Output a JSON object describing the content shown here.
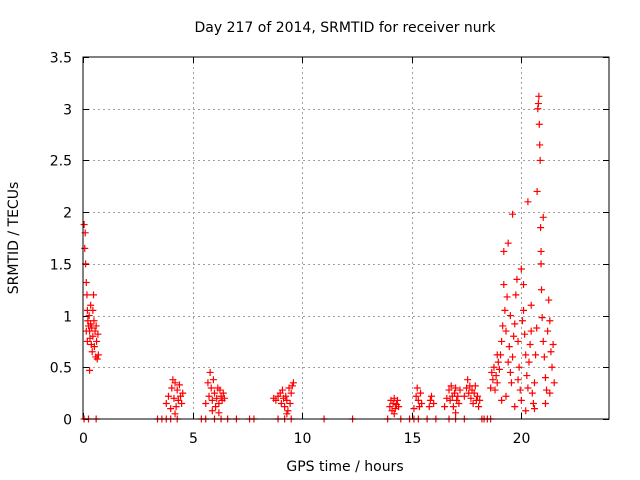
{
  "chart_data": {
    "type": "scatter",
    "title": "Day 217 of 2014, SRMTID for receiver nurk",
    "xlabel": "GPS time / hours",
    "ylabel": "SRMTID / TECUs",
    "xlim": [
      0,
      24
    ],
    "ylim": [
      0,
      3.5
    ],
    "xticks": [
      0,
      5,
      10,
      15,
      20
    ],
    "xtick_labels": [
      "0",
      "5",
      "10",
      "15",
      "20"
    ],
    "yticks": [
      0,
      0.5,
      1,
      1.5,
      2,
      2.5,
      3,
      3.5
    ],
    "ytick_labels": [
      "0",
      "0.5",
      "1",
      "1.5",
      "2",
      "2.5",
      "3",
      "3.5"
    ],
    "grid": true,
    "marker": "+",
    "series": [
      {
        "name": "SRMTID",
        "color": "#ff0000",
        "points": [
          [
            0.05,
            1.88
          ],
          [
            0.08,
            1.65
          ],
          [
            0.1,
            1.8
          ],
          [
            0.12,
            1.5
          ],
          [
            0.15,
            1.32
          ],
          [
            0.18,
            1.2
          ],
          [
            0.2,
            1.05
          ],
          [
            0.22,
            0.95
          ],
          [
            0.25,
            0.9
          ],
          [
            0.28,
            1.0
          ],
          [
            0.3,
            0.85
          ],
          [
            0.32,
            0.78
          ],
          [
            0.35,
            0.92
          ],
          [
            0.38,
            0.72
          ],
          [
            0.4,
            0.88
          ],
          [
            0.42,
            0.65
          ],
          [
            0.45,
            0.8
          ],
          [
            0.48,
            1.2
          ],
          [
            0.5,
            0.95
          ],
          [
            0.52,
            0.7
          ],
          [
            0.55,
            0.85
          ],
          [
            0.58,
            0.6
          ],
          [
            0.6,
            0.9
          ],
          [
            0.62,
            0.75
          ],
          [
            0.65,
            0.58
          ],
          [
            0.68,
            0.82
          ],
          [
            0.7,
            0.62
          ],
          [
            0.3,
            0.47
          ],
          [
            0.2,
            0.75
          ],
          [
            0.35,
            1.1
          ],
          [
            0.45,
            1.05
          ],
          [
            0.15,
            0.85
          ],
          [
            0.05,
            0.0
          ],
          [
            0.25,
            0.0
          ],
          [
            0.6,
            0.0
          ],
          [
            3.4,
            0.0
          ],
          [
            3.6,
            0.0
          ],
          [
            3.8,
            0.0
          ],
          [
            3.8,
            0.15
          ],
          [
            3.9,
            0.22
          ],
          [
            4.0,
            0.1
          ],
          [
            4.05,
            0.3
          ],
          [
            4.1,
            0.38
          ],
          [
            4.15,
            0.2
          ],
          [
            4.2,
            0.35
          ],
          [
            4.25,
            0.12
          ],
          [
            4.3,
            0.28
          ],
          [
            4.35,
            0.18
          ],
          [
            4.4,
            0.33
          ],
          [
            4.45,
            0.22
          ],
          [
            4.5,
            0.15
          ],
          [
            4.55,
            0.25
          ],
          [
            4.2,
            0.05
          ],
          [
            4.0,
            0.0
          ],
          [
            4.3,
            0.0
          ],
          [
            5.4,
            0.0
          ],
          [
            5.6,
            0.0
          ],
          [
            5.6,
            0.15
          ],
          [
            5.7,
            0.35
          ],
          [
            5.75,
            0.22
          ],
          [
            5.8,
            0.45
          ],
          [
            5.85,
            0.3
          ],
          [
            5.9,
            0.18
          ],
          [
            5.95,
            0.38
          ],
          [
            6.0,
            0.25
          ],
          [
            6.05,
            0.12
          ],
          [
            6.1,
            0.2
          ],
          [
            6.15,
            0.3
          ],
          [
            6.2,
            0.15
          ],
          [
            6.25,
            0.28
          ],
          [
            6.3,
            0.22
          ],
          [
            6.35,
            0.18
          ],
          [
            6.4,
            0.25
          ],
          [
            6.45,
            0.2
          ],
          [
            5.9,
            0.08
          ],
          [
            6.2,
            0.06
          ],
          [
            6.0,
            0.0
          ],
          [
            6.3,
            0.0
          ],
          [
            6.6,
            0.0
          ],
          [
            7.0,
            0.0
          ],
          [
            7.6,
            0.0
          ],
          [
            7.8,
            0.0
          ],
          [
            8.7,
            0.2
          ],
          [
            8.8,
            0.18
          ],
          [
            8.9,
            0.22
          ],
          [
            9.0,
            0.25
          ],
          [
            9.05,
            0.15
          ],
          [
            9.1,
            0.28
          ],
          [
            9.15,
            0.2
          ],
          [
            9.2,
            0.12
          ],
          [
            9.25,
            0.22
          ],
          [
            9.3,
            0.18
          ],
          [
            9.35,
            0.08
          ],
          [
            9.4,
            0.3
          ],
          [
            9.45,
            0.15
          ],
          [
            9.5,
            0.25
          ],
          [
            9.55,
            0.32
          ],
          [
            9.6,
            0.35
          ],
          [
            9.3,
            0.05
          ],
          [
            8.9,
            0.0
          ],
          [
            9.2,
            0.0
          ],
          [
            9.5,
            0.0
          ],
          [
            11.0,
            0.0
          ],
          [
            12.3,
            0.0
          ],
          [
            13.9,
            0.0
          ],
          [
            14.0,
            0.12
          ],
          [
            14.05,
            0.18
          ],
          [
            14.1,
            0.08
          ],
          [
            14.15,
            0.15
          ],
          [
            14.2,
            0.2
          ],
          [
            14.25,
            0.1
          ],
          [
            14.3,
            0.14
          ],
          [
            14.35,
            0.18
          ],
          [
            14.4,
            0.12
          ],
          [
            14.2,
            0.05
          ],
          [
            14.5,
            0.0
          ],
          [
            14.9,
            0.0
          ],
          [
            15.1,
            0.0
          ],
          [
            15.3,
            0.0
          ],
          [
            15.1,
            0.1
          ],
          [
            15.2,
            0.22
          ],
          [
            15.25,
            0.3
          ],
          [
            15.3,
            0.18
          ],
          [
            15.35,
            0.12
          ],
          [
            15.4,
            0.25
          ],
          [
            15.45,
            0.15
          ],
          [
            15.7,
            0.0
          ],
          [
            15.8,
            0.12
          ],
          [
            15.85,
            0.18
          ],
          [
            15.9,
            0.22
          ],
          [
            16.0,
            0.15
          ],
          [
            16.1,
            0.0
          ],
          [
            16.5,
            0.12
          ],
          [
            16.6,
            0.2
          ],
          [
            16.7,
            0.28
          ],
          [
            16.75,
            0.18
          ],
          [
            16.8,
            0.32
          ],
          [
            16.85,
            0.22
          ],
          [
            16.9,
            0.12
          ],
          [
            16.95,
            0.25
          ],
          [
            17.0,
            0.3
          ],
          [
            17.05,
            0.18
          ],
          [
            17.1,
            0.22
          ],
          [
            17.15,
            0.15
          ],
          [
            17.2,
            0.28
          ],
          [
            17.0,
            0.06
          ],
          [
            16.7,
            0.0
          ],
          [
            17.0,
            0.0
          ],
          [
            17.4,
            0.0
          ],
          [
            17.4,
            0.22
          ],
          [
            17.5,
            0.3
          ],
          [
            17.55,
            0.38
          ],
          [
            17.6,
            0.25
          ],
          [
            17.65,
            0.32
          ],
          [
            17.7,
            0.2
          ],
          [
            17.75,
            0.28
          ],
          [
            17.8,
            0.15
          ],
          [
            17.85,
            0.25
          ],
          [
            17.9,
            0.32
          ],
          [
            17.95,
            0.18
          ],
          [
            18.0,
            0.22
          ],
          [
            18.05,
            0.12
          ],
          [
            18.1,
            0.18
          ],
          [
            18.2,
            0.0
          ],
          [
            18.3,
            0.0
          ],
          [
            18.45,
            0.0
          ],
          [
            18.6,
            0.0
          ],
          [
            18.6,
            0.3
          ],
          [
            18.65,
            0.45
          ],
          [
            18.7,
            0.38
          ],
          [
            18.75,
            0.5
          ],
          [
            18.8,
            0.28
          ],
          [
            18.85,
            0.42
          ],
          [
            18.9,
            0.35
          ],
          [
            18.95,
            0.55
          ],
          [
            19.0,
            0.48
          ],
          [
            19.05,
            0.62
          ],
          [
            19.1,
            0.75
          ],
          [
            19.15,
            0.9
          ],
          [
            19.2,
            1.3
          ],
          [
            19.25,
            1.05
          ],
          [
            19.3,
            0.85
          ],
          [
            19.35,
            1.18
          ],
          [
            19.4,
            0.55
          ],
          [
            19.45,
            0.7
          ],
          [
            19.5,
            0.45
          ],
          [
            19.55,
            0.35
          ],
          [
            19.6,
            0.6
          ],
          [
            19.65,
            0.8
          ],
          [
            19.7,
            0.92
          ],
          [
            19.75,
            1.2
          ],
          [
            19.8,
            1.35
          ],
          [
            19.85,
            0.75
          ],
          [
            19.9,
            0.5
          ],
          [
            19.95,
            0.28
          ],
          [
            20.0,
            0.18
          ],
          [
            20.05,
            0.95
          ],
          [
            20.1,
            1.05
          ],
          [
            20.15,
            0.82
          ],
          [
            20.2,
            0.62
          ],
          [
            20.25,
            0.42
          ],
          [
            20.3,
            0.3
          ],
          [
            20.35,
            0.55
          ],
          [
            20.4,
            0.72
          ],
          [
            20.45,
            0.85
          ],
          [
            20.5,
            0.25
          ],
          [
            20.55,
            0.15
          ],
          [
            20.6,
            0.35
          ],
          [
            20.65,
            0.62
          ],
          [
            20.7,
            0.88
          ],
          [
            20.72,
            2.2
          ],
          [
            20.75,
            3.0
          ],
          [
            20.78,
            3.05
          ],
          [
            20.8,
            3.12
          ],
          [
            20.82,
            2.85
          ],
          [
            20.84,
            2.65
          ],
          [
            20.86,
            2.5
          ],
          [
            20.88,
            1.85
          ],
          [
            20.9,
            1.5
          ],
          [
            20.92,
            1.25
          ],
          [
            20.95,
            0.98
          ],
          [
            21.0,
            0.75
          ],
          [
            21.05,
            0.6
          ],
          [
            21.1,
            0.4
          ],
          [
            21.15,
            0.28
          ],
          [
            21.2,
            0.85
          ],
          [
            21.25,
            1.15
          ],
          [
            21.3,
            0.95
          ],
          [
            21.35,
            0.65
          ],
          [
            21.4,
            0.5
          ],
          [
            21.45,
            0.72
          ],
          [
            21.5,
            0.35
          ],
          [
            19.2,
            1.62
          ],
          [
            19.4,
            1.7
          ],
          [
            19.6,
            1.98
          ],
          [
            20.0,
            1.45
          ],
          [
            20.3,
            2.1
          ],
          [
            20.9,
            1.62
          ],
          [
            21.0,
            1.95
          ],
          [
            19.1,
            0.18
          ],
          [
            19.3,
            0.22
          ],
          [
            19.7,
            0.12
          ],
          [
            20.2,
            0.08
          ],
          [
            20.6,
            0.1
          ],
          [
            21.1,
            0.15
          ],
          [
            19.5,
            1.0
          ],
          [
            20.1,
            1.3
          ],
          [
            20.45,
            1.1
          ],
          [
            21.3,
            0.25
          ],
          [
            18.9,
            0.62
          ],
          [
            19.85,
            0.38
          ]
        ]
      }
    ]
  }
}
